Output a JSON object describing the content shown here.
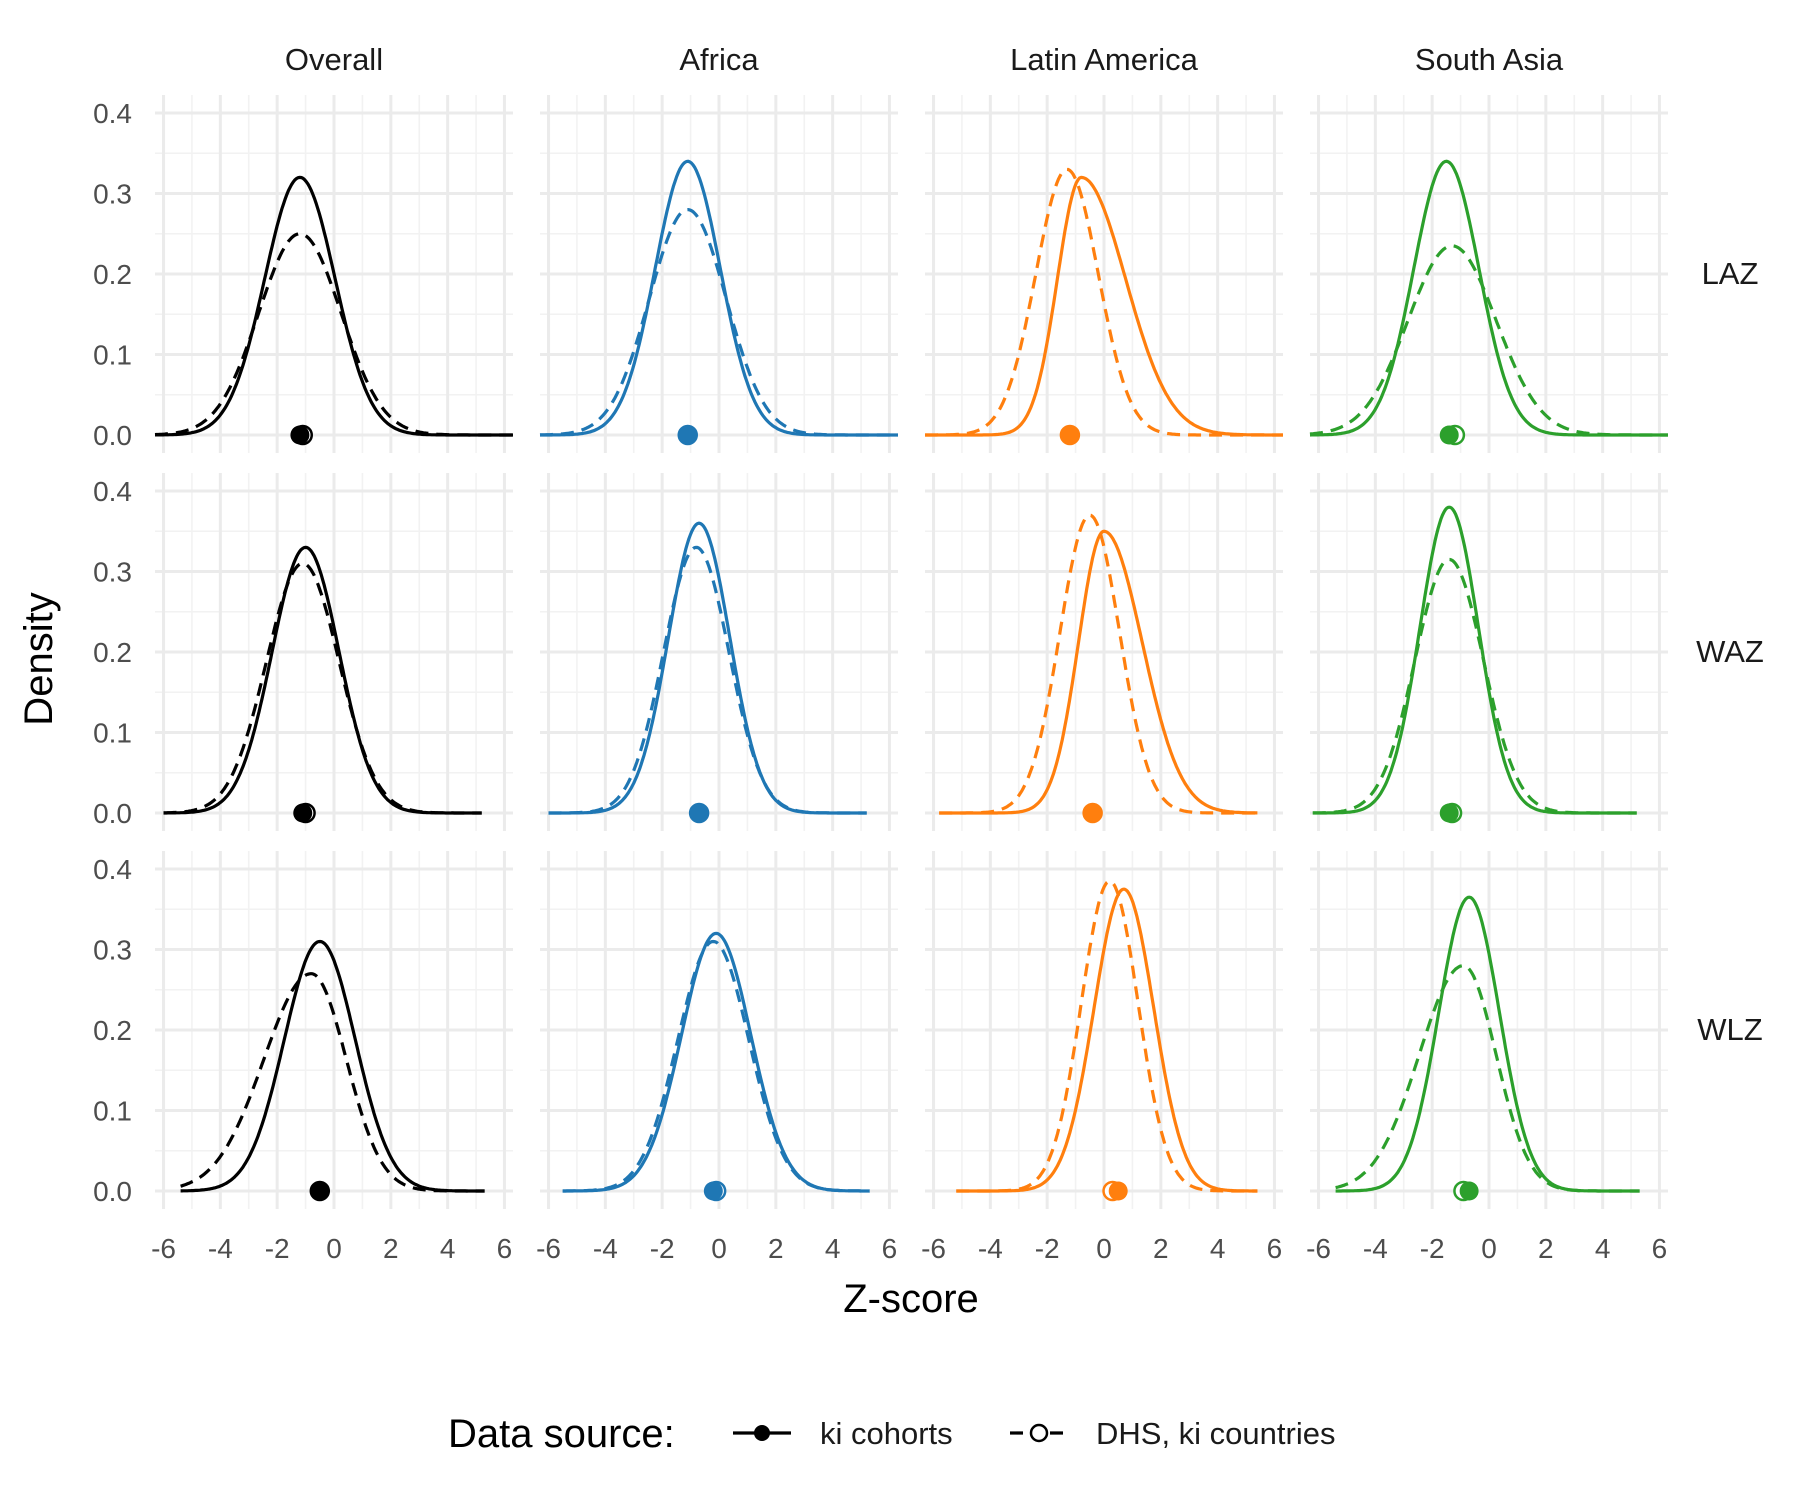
{
  "chart_data": {
    "type": "line",
    "subtype": "faceted density",
    "xlabel": "Z-score",
    "ylabel": "Density",
    "xlim": [
      -6,
      6
    ],
    "ylim": [
      0,
      0.4
    ],
    "x_ticks": [
      "-6",
      "-4",
      "-2",
      "0",
      "2",
      "4",
      "6"
    ],
    "y_ticks": [
      "0.0",
      "0.1",
      "0.2",
      "0.3",
      "0.4"
    ],
    "grid": true,
    "legend": {
      "position": "bottom",
      "title": "Data source:",
      "entries": [
        {
          "label": "ki cohorts",
          "linestyle": "solid",
          "marker": "filled-circle"
        },
        {
          "label": "DHS, ki countries",
          "linestyle": "dashed",
          "marker": "open-circle"
        }
      ]
    },
    "columns": [
      {
        "label": "Overall",
        "color": "#000000"
      },
      {
        "label": "Africa",
        "color": "#1F77B4"
      },
      {
        "label": "Latin America",
        "color": "#FF7F0E"
      },
      {
        "label": "South Asia",
        "color": "#2CA02C"
      }
    ],
    "rows": [
      {
        "label": "LAZ"
      },
      {
        "label": "WAZ"
      },
      {
        "label": "WLZ"
      }
    ],
    "panels": [
      {
        "row": 0,
        "col": 0,
        "ki": {
          "mean": -1.2,
          "peak": 0.32,
          "sd": 1.24,
          "skew": 0,
          "range": [
            -6.3,
            6.3
          ]
        },
        "dhs": {
          "mean": -1.2,
          "peak": 0.25,
          "sd": 1.45,
          "skew": 0,
          "range": [
            -6.3,
            6.3
          ]
        },
        "ki_point": -1.2,
        "dhs_point": -1.1
      },
      {
        "row": 0,
        "col": 1,
        "ki": {
          "mean": -1.1,
          "peak": 0.34,
          "sd": 1.15,
          "skew": 0,
          "range": [
            -6.3,
            6.3
          ]
        },
        "dhs": {
          "mean": -1.1,
          "peak": 0.28,
          "sd": 1.35,
          "skew": 0,
          "range": [
            -6.3,
            6.3
          ]
        },
        "ki_point": -1.1,
        "dhs_point": -1.1
      },
      {
        "row": 0,
        "col": 2,
        "ki": {
          "mean": -0.8,
          "peak": 0.32,
          "sd": 1.2,
          "skew": 0.3,
          "range": [
            -6.3,
            6.3
          ]
        },
        "dhs": {
          "mean": -1.3,
          "peak": 0.33,
          "sd": 1.1,
          "skew": 0,
          "range": [
            -6.3,
            6.3
          ]
        },
        "ki_point": -1.2,
        "dhs_point": -1.2
      },
      {
        "row": 0,
        "col": 3,
        "ki": {
          "mean": -1.5,
          "peak": 0.34,
          "sd": 1.15,
          "skew": 0,
          "range": [
            -6.3,
            6.3
          ]
        },
        "dhs": {
          "mean": -1.3,
          "peak": 0.235,
          "sd": 1.55,
          "skew": 0,
          "range": [
            -6.3,
            6.3
          ]
        },
        "ki_point": -1.4,
        "dhs_point": -1.2
      },
      {
        "row": 1,
        "col": 0,
        "ki": {
          "mean": -1.0,
          "peak": 0.33,
          "sd": 1.18,
          "skew": 0,
          "range": [
            -6.0,
            5.2
          ]
        },
        "dhs": {
          "mean": -1.1,
          "peak": 0.31,
          "sd": 1.28,
          "skew": 0,
          "range": [
            -6.0,
            5.2
          ]
        },
        "ki_point": -1.1,
        "dhs_point": -1.0
      },
      {
        "row": 1,
        "col": 1,
        "ki": {
          "mean": -0.7,
          "peak": 0.36,
          "sd": 1.08,
          "skew": 0,
          "range": [
            -6.0,
            5.2
          ]
        },
        "dhs": {
          "mean": -0.8,
          "peak": 0.33,
          "sd": 1.15,
          "skew": 0,
          "range": [
            -6.0,
            5.2
          ]
        },
        "ki_point": -0.7,
        "dhs_point": -0.7
      },
      {
        "row": 1,
        "col": 2,
        "ki": {
          "mean": 0.0,
          "peak": 0.35,
          "sd": 1.12,
          "skew": 0.2,
          "range": [
            -5.8,
            5.4
          ]
        },
        "dhs": {
          "mean": -0.5,
          "peak": 0.37,
          "sd": 1.05,
          "skew": 0,
          "range": [
            -5.8,
            5.4
          ]
        },
        "ki_point": -0.4,
        "dhs_point": -0.4
      },
      {
        "row": 1,
        "col": 3,
        "ki": {
          "mean": -1.4,
          "peak": 0.38,
          "sd": 1.03,
          "skew": 0,
          "range": [
            -6.2,
            5.2
          ]
        },
        "dhs": {
          "mean": -1.4,
          "peak": 0.315,
          "sd": 1.2,
          "skew": 0,
          "range": [
            -6.2,
            5.2
          ]
        },
        "ki_point": -1.4,
        "dhs_point": -1.3
      },
      {
        "row": 2,
        "col": 0,
        "ki": {
          "mean": -0.5,
          "peak": 0.31,
          "sd": 1.25,
          "skew": 0,
          "range": [
            -5.4,
            5.3
          ]
        },
        "dhs": {
          "mean": -0.8,
          "peak": 0.27,
          "sd": 1.45,
          "skew": -0.15,
          "range": [
            -5.4,
            5.3
          ]
        },
        "ki_point": -0.5,
        "dhs_point": -0.5
      },
      {
        "row": 2,
        "col": 1,
        "ki": {
          "mean": -0.1,
          "peak": 0.32,
          "sd": 1.22,
          "skew": 0,
          "range": [
            -5.5,
            5.3
          ]
        },
        "dhs": {
          "mean": -0.2,
          "peak": 0.31,
          "sd": 1.25,
          "skew": 0,
          "range": [
            -5.5,
            5.3
          ]
        },
        "ki_point": -0.2,
        "dhs_point": -0.1
      },
      {
        "row": 2,
        "col": 2,
        "ki": {
          "mean": 0.7,
          "peak": 0.375,
          "sd": 1.05,
          "skew": 0,
          "range": [
            -5.2,
            5.4
          ]
        },
        "dhs": {
          "mean": 0.2,
          "peak": 0.385,
          "sd": 1.0,
          "skew": 0,
          "range": [
            -5.2,
            5.4
          ]
        },
        "ki_point": 0.5,
        "dhs_point": 0.3
      },
      {
        "row": 2,
        "col": 3,
        "ki": {
          "mean": -0.7,
          "peak": 0.365,
          "sd": 1.07,
          "skew": 0,
          "range": [
            -5.4,
            5.3
          ]
        },
        "dhs": {
          "mean": -0.9,
          "peak": 0.28,
          "sd": 1.35,
          "skew": -0.15,
          "range": [
            -5.4,
            5.3
          ]
        },
        "ki_point": -0.7,
        "dhs_point": -0.9
      }
    ]
  }
}
